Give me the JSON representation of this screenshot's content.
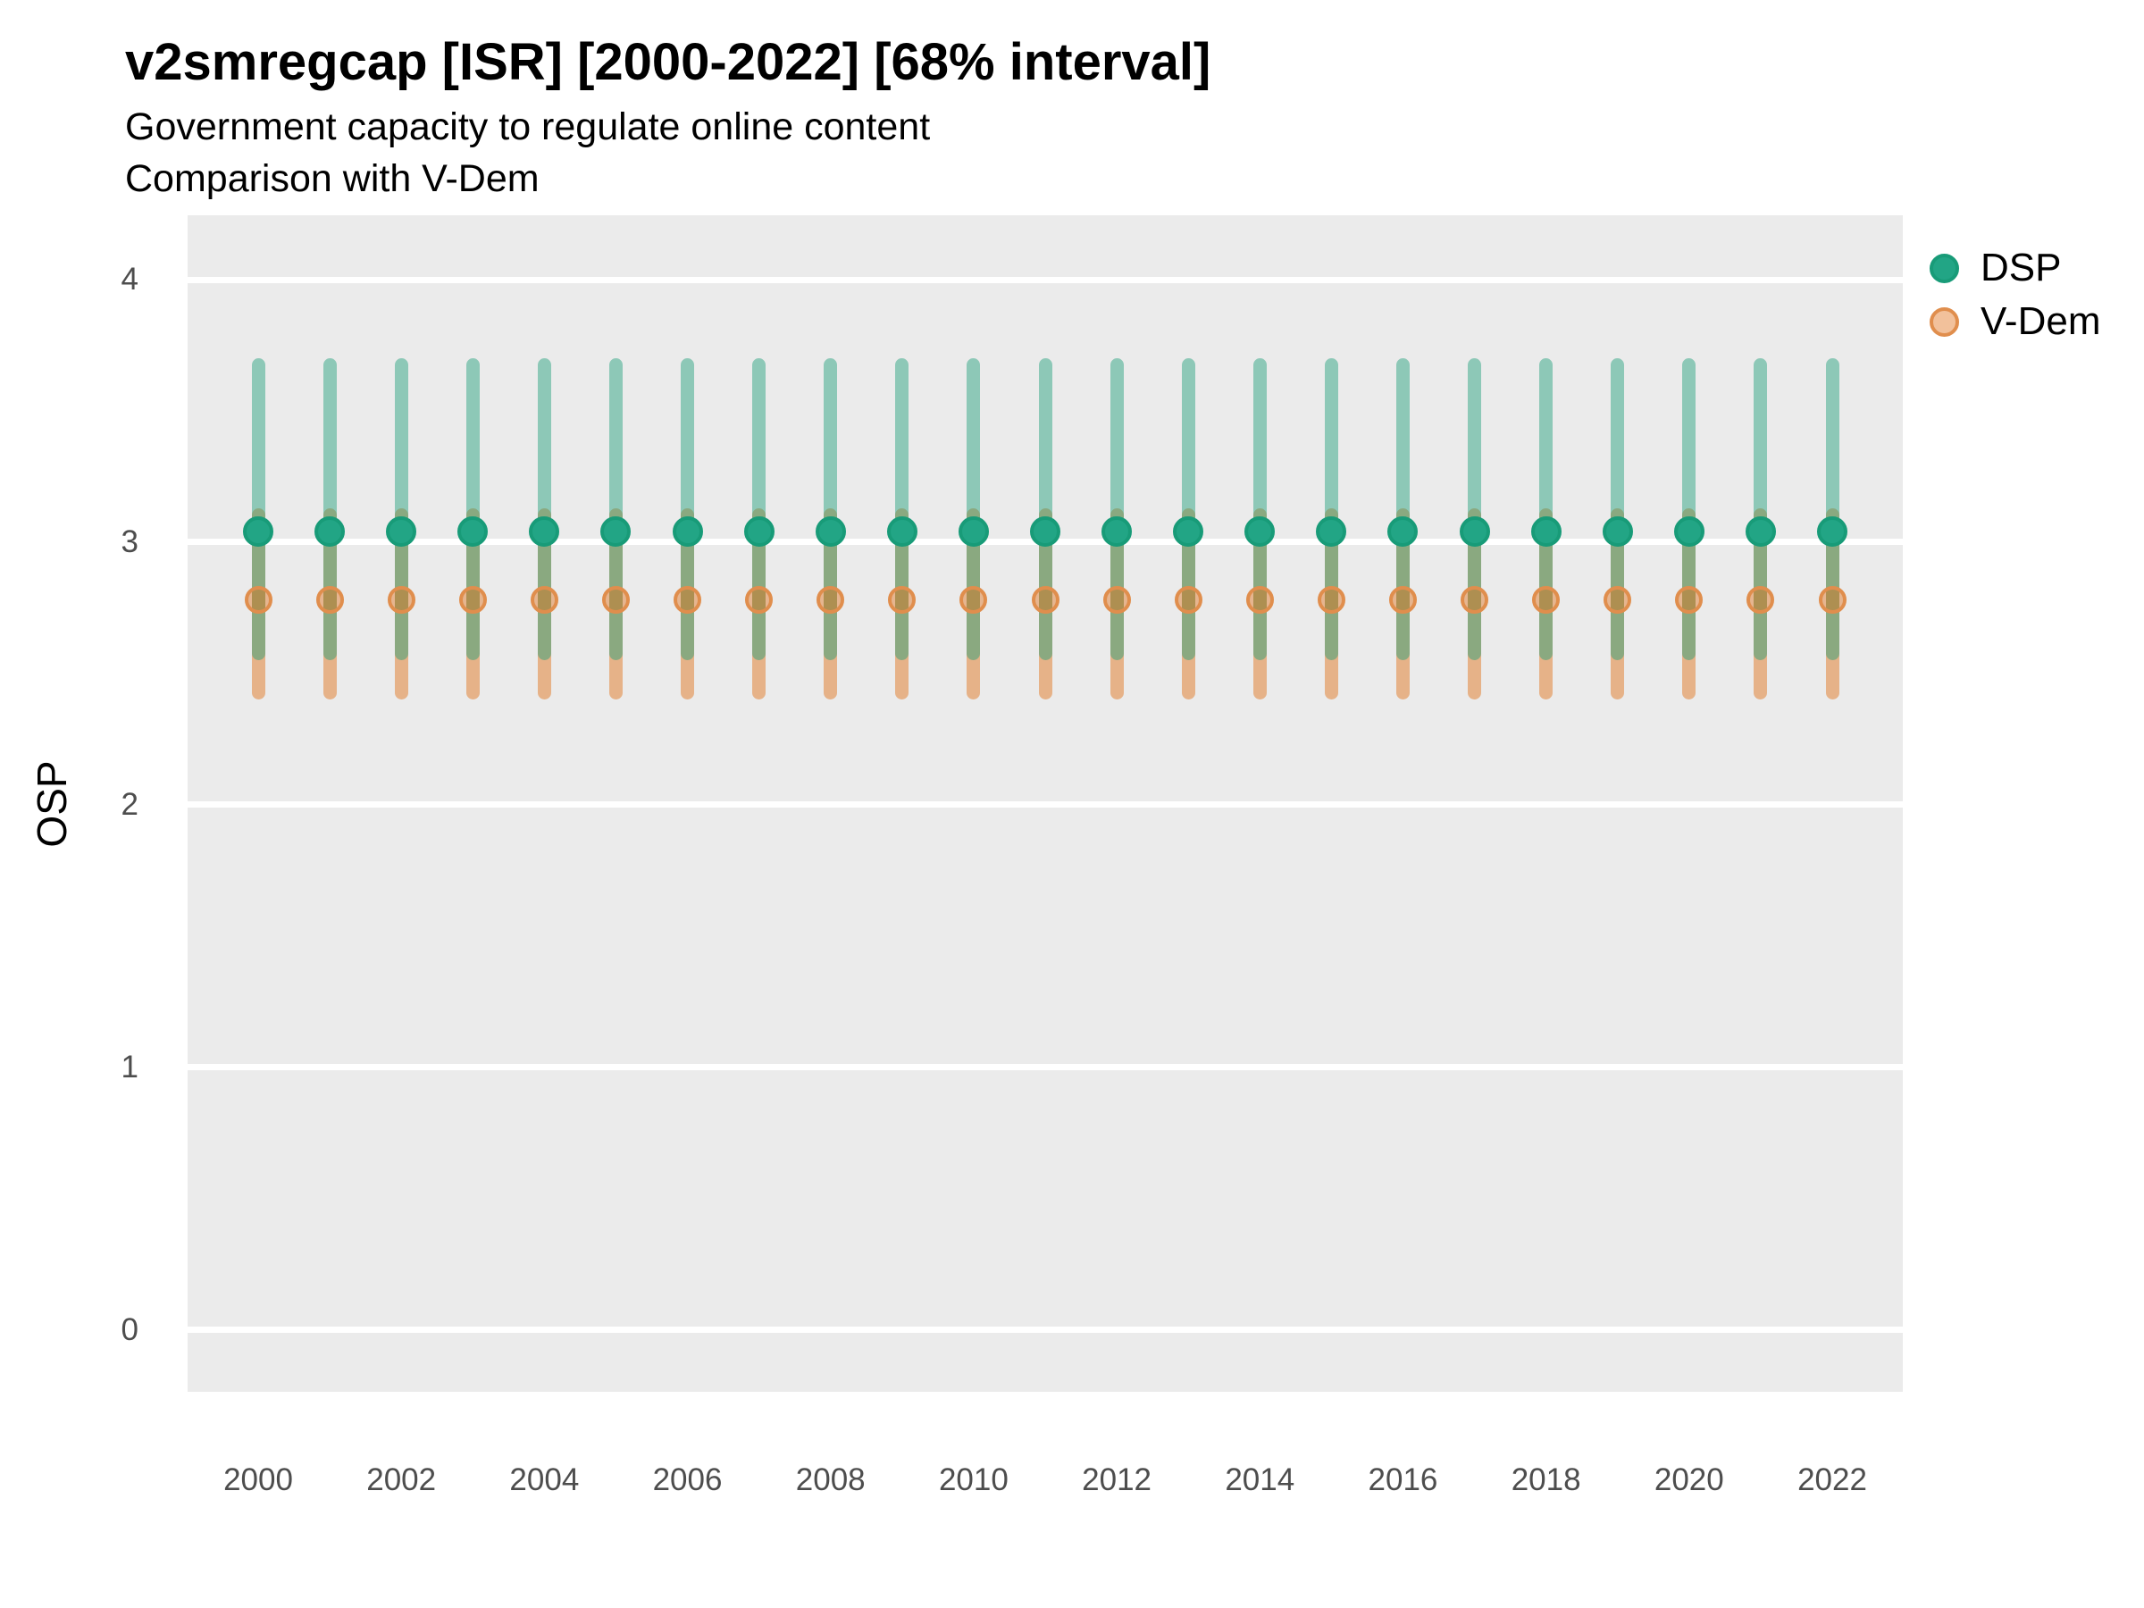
{
  "header": {
    "title": "v2smregcap [ISR] [2000-2022] [68% interval]",
    "subtitle": "Government capacity to regulate online content",
    "subtitle2": "Comparison with V-Dem"
  },
  "y_axis": {
    "title": "OSP",
    "tick_values": [
      4,
      3,
      2,
      1,
      0
    ],
    "tick_labels": [
      "4",
      "3",
      "2",
      "1",
      "0"
    ]
  },
  "x_axis": {
    "tick_labels": [
      "2000",
      "2002",
      "2004",
      "2006",
      "2008",
      "2010",
      "2012",
      "2014",
      "2016",
      "2018",
      "2020",
      "2022"
    ]
  },
  "legend": {
    "items": [
      {
        "label": "DSP"
      },
      {
        "label": "V-Dem"
      }
    ]
  },
  "colors": {
    "panel_background": "#EBEBEB",
    "gridline": "#FFFFFF",
    "dsp_point_fill": "#22A585",
    "dsp_point_ring": "#189B78",
    "dsp_interval": "rgba(27,158,119,0.45)",
    "vdem_point_fill": "rgba(224,108,16,0.42)",
    "vdem_point_ring": "#E08E4D",
    "vdem_interval": "rgba(224,108,16,0.45)",
    "tick_text": "#4D4D4D",
    "text": "#000000"
  },
  "chart_data": {
    "type": "pointrange",
    "title": "v2smregcap [ISR] [2000-2022] [68% interval]",
    "subtitle": [
      "Government capacity to regulate online content",
      "Comparison with V-Dem"
    ],
    "interval": "68%",
    "xlabel": "",
    "ylabel": "OSP",
    "x": [
      2000,
      2001,
      2002,
      2003,
      2004,
      2005,
      2006,
      2007,
      2008,
      2009,
      2010,
      2011,
      2012,
      2013,
      2014,
      2015,
      2016,
      2017,
      2018,
      2019,
      2020,
      2021,
      2022
    ],
    "x_ticks": [
      2000,
      2002,
      2004,
      2006,
      2008,
      2010,
      2012,
      2014,
      2016,
      2018,
      2020,
      2022
    ],
    "y_ticks": [
      0,
      1,
      2,
      3,
      4
    ],
    "ylim": [
      -0.235,
      4.245
    ],
    "grid": "horizontal-major-only",
    "legend_position": "right-top",
    "series": [
      {
        "name": "DSP",
        "values": [
          3.04,
          3.04,
          3.04,
          3.04,
          3.04,
          3.04,
          3.04,
          3.04,
          3.04,
          3.04,
          3.04,
          3.04,
          3.04,
          3.04,
          3.04,
          3.04,
          3.04,
          3.04,
          3.04,
          3.04,
          3.04,
          3.04,
          3.04
        ],
        "lower": [
          2.55,
          2.55,
          2.55,
          2.55,
          2.55,
          2.55,
          2.55,
          2.55,
          2.55,
          2.55,
          2.55,
          2.55,
          2.55,
          2.55,
          2.55,
          2.55,
          2.55,
          2.55,
          2.55,
          2.55,
          2.55,
          2.55,
          2.55
        ],
        "upper": [
          3.7,
          3.7,
          3.7,
          3.7,
          3.7,
          3.7,
          3.7,
          3.7,
          3.7,
          3.7,
          3.7,
          3.7,
          3.7,
          3.7,
          3.7,
          3.7,
          3.7,
          3.7,
          3.7,
          3.7,
          3.7,
          3.7,
          3.7
        ]
      },
      {
        "name": "V-Dem",
        "values": [
          2.78,
          2.78,
          2.78,
          2.78,
          2.78,
          2.78,
          2.78,
          2.78,
          2.78,
          2.78,
          2.78,
          2.78,
          2.78,
          2.78,
          2.78,
          2.78,
          2.78,
          2.78,
          2.78,
          2.78,
          2.78,
          2.78,
          2.78
        ],
        "lower": [
          2.4,
          2.4,
          2.4,
          2.4,
          2.4,
          2.4,
          2.4,
          2.4,
          2.4,
          2.4,
          2.4,
          2.4,
          2.4,
          2.4,
          2.4,
          2.4,
          2.4,
          2.4,
          2.4,
          2.4,
          2.4,
          2.4,
          2.4
        ],
        "upper": [
          3.13,
          3.13,
          3.13,
          3.13,
          3.13,
          3.13,
          3.13,
          3.13,
          3.13,
          3.13,
          3.13,
          3.13,
          3.13,
          3.13,
          3.13,
          3.13,
          3.13,
          3.13,
          3.13,
          3.13,
          3.13,
          3.13,
          3.13
        ]
      }
    ]
  }
}
